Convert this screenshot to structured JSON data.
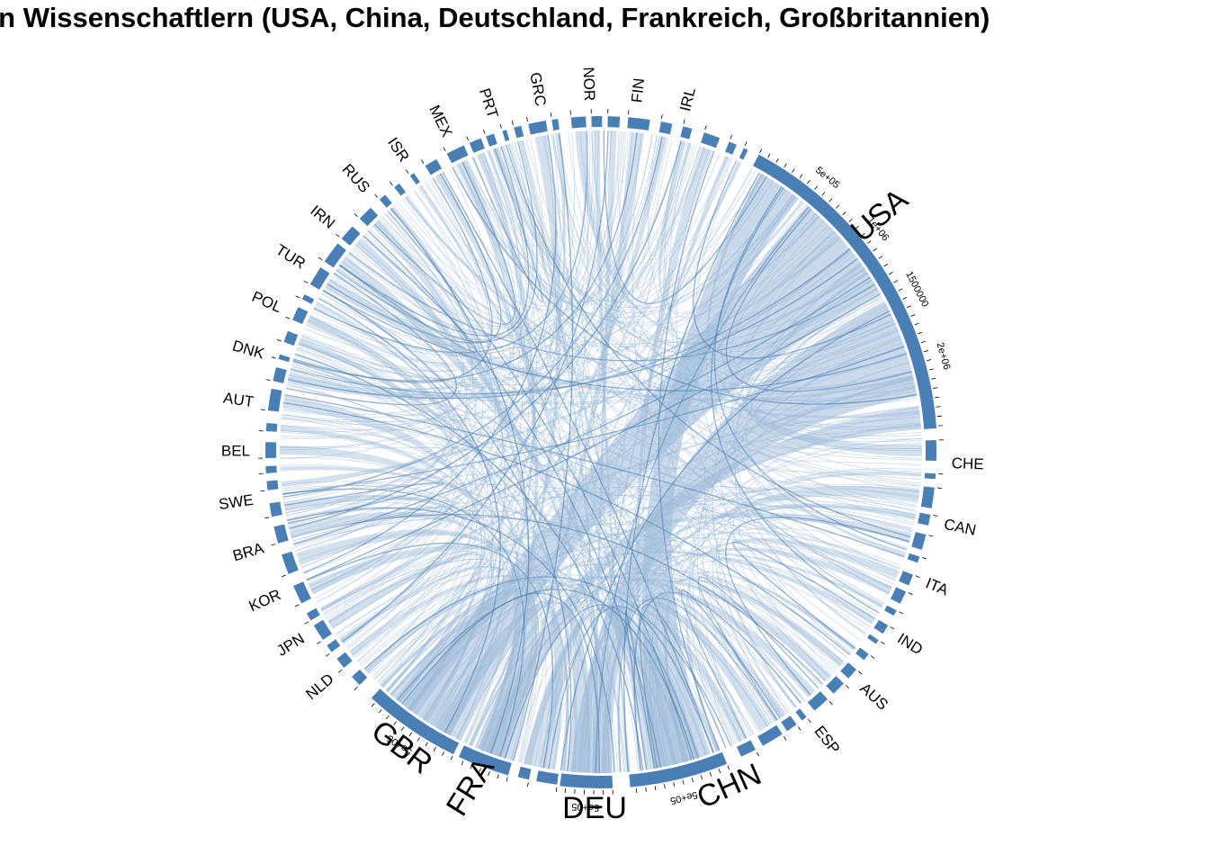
{
  "title": "ströme von Wissenschaftlern (USA, China, Deutschland, Frankreich, Großbritannien)",
  "colors": {
    "segment": "#4A7FB5",
    "chord": "#9DBAD8",
    "chord_dark": "#4A7DB0",
    "text": "#000000"
  },
  "chart_data": {
    "type": "chord",
    "major_sectors": [
      {
        "name": "USA",
        "ticks": [
          "5e+05",
          "1e+06",
          "1500000",
          "2e+06"
        ]
      },
      {
        "name": "CHN",
        "ticks": [
          "5e+05"
        ]
      },
      {
        "name": "DEU",
        "ticks": [
          "5e+05"
        ]
      },
      {
        "name": "FRA",
        "ticks": []
      },
      {
        "name": "GBR",
        "ticks": [
          "5e+05"
        ]
      }
    ],
    "minor_sector_labels": [
      "CHE",
      "CAN",
      "ITA",
      "IND",
      "AUS",
      "ESP",
      "NLD",
      "JPN",
      "KOR",
      "BRA",
      "SWE",
      "BEL",
      "AUT",
      "DNK",
      "POL",
      "TUR",
      "IRN",
      "RUS",
      "ISR",
      "MEX",
      "PRT",
      "GRC",
      "NOR",
      "FIN",
      "IRL"
    ]
  }
}
